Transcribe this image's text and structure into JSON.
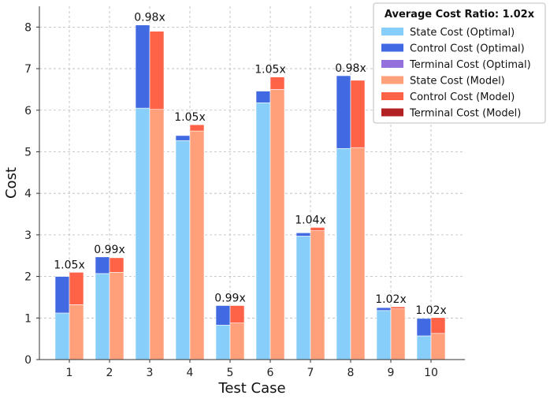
{
  "chart_data": {
    "type": "bar",
    "stacked": true,
    "grouped": true,
    "categories": [
      "1",
      "2",
      "3",
      "4",
      "5",
      "6",
      "7",
      "8",
      "9",
      "10"
    ],
    "xlabel": "Test Case",
    "ylabel": "Cost",
    "ylim": [
      0,
      8.5
    ],
    "yticks": [
      0,
      1,
      2,
      3,
      4,
      5,
      6,
      7,
      8
    ],
    "grid": true,
    "legend_position": "top-right",
    "legend_title": "Average Cost Ratio: 1.02x",
    "groups": [
      {
        "name": "Optimal",
        "series": [
          {
            "name": "State Cost (Optimal)",
            "color": "#87CEFA",
            "values": [
              1.12,
              2.07,
              6.05,
              5.27,
              0.83,
              6.18,
              2.97,
              5.08,
              1.18,
              0.57
            ]
          },
          {
            "name": "Control Cost (Optimal)",
            "color": "#4169E1",
            "values": [
              0.88,
              0.4,
              2.0,
              0.12,
              0.47,
              0.28,
              0.08,
              1.75,
              0.07,
              0.42
            ]
          },
          {
            "name": "Terminal Cost (Optimal)",
            "color": "#9370DB",
            "values": [
              0,
              0,
              0,
              0,
              0,
              0,
              0,
              0,
              0,
              0
            ]
          }
        ]
      },
      {
        "name": "Model",
        "series": [
          {
            "name": "State Cost (Model)",
            "color": "#FFA07A",
            "values": [
              1.32,
              2.1,
              6.02,
              5.5,
              0.88,
              6.5,
              3.1,
              5.1,
              1.22,
              0.63
            ]
          },
          {
            "name": "Control Cost (Model)",
            "color": "#FF6347",
            "values": [
              0.78,
              0.35,
              1.88,
              0.15,
              0.42,
              0.3,
              0.08,
              1.62,
              0.05,
              0.38
            ]
          },
          {
            "name": "Terminal Cost (Model)",
            "color": "#B22222",
            "values": [
              0,
              0,
              0,
              0,
              0,
              0,
              0,
              0,
              0,
              0
            ]
          }
        ]
      }
    ],
    "ratio_labels": [
      "1.05x",
      "0.99x",
      "0.98x",
      "1.05x",
      "0.99x",
      "1.05x",
      "1.04x",
      "0.98x",
      "1.02x",
      "1.02x"
    ]
  }
}
